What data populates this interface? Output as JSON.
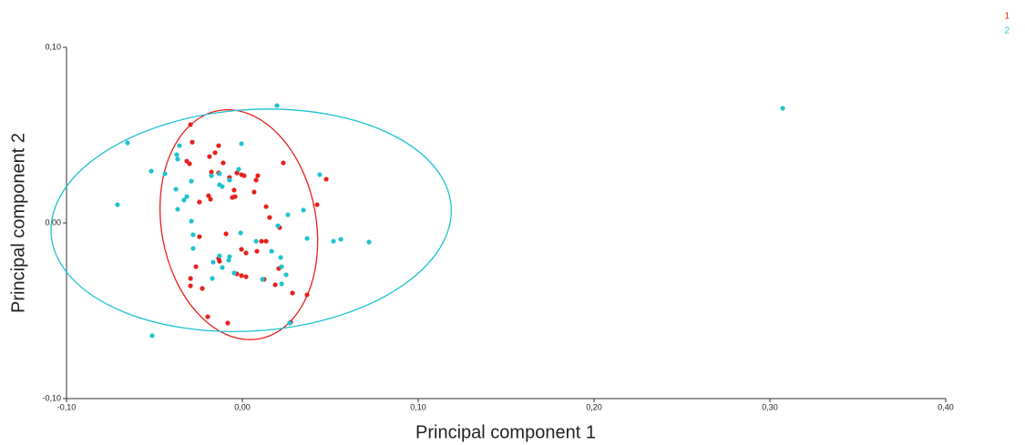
{
  "chart_data": {
    "type": "scatter",
    "x_label": "Principal component 1",
    "y_label": "Principal component 2",
    "xlim": [
      -0.1,
      0.4
    ],
    "ylim": [
      -0.1,
      0.1
    ],
    "xticks": [
      {
        "value": -0.1,
        "label": "-0,10"
      },
      {
        "value": 0,
        "label": "0,00"
      },
      {
        "value": 0.1,
        "label": "0,10"
      },
      {
        "value": 0.2,
        "label": "0,20"
      },
      {
        "value": 0.3,
        "label": "0,30"
      },
      {
        "value": 0.4,
        "label": "0,40"
      }
    ],
    "yticks": [
      {
        "value": -0.1,
        "label": "-0,10"
      },
      {
        "value": 0,
        "label": "0,00"
      },
      {
        "value": 0.1,
        "label": "0,10"
      }
    ],
    "grid": false,
    "legend_position": "top-right",
    "series": [
      {
        "name": "1",
        "color": "#e6211c",
        "x": [
          -0.0295,
          -0.0285,
          -0.0316,
          -0.03,
          -0.0135,
          -0.0155,
          -0.0187,
          -0.0109,
          -0.0073,
          -0.0047,
          -0.0057,
          -0.0176,
          -0.0135,
          -0.0031,
          -0.0005,
          0.0088,
          0.001,
          0.0078,
          0.0067,
          0.0233,
          0.0477,
          0.0425,
          -0.0192,
          -0.0244,
          -0.0181,
          -0.0041,
          0.0135,
          0.0155,
          0.0212,
          -0.0244,
          -0.0093,
          0.0109,
          0.0135,
          -0.0005,
          0.0083,
          0.0021,
          -0.0135,
          -0.013,
          -0.0295,
          -0.0264,
          -0.0295,
          -0.0228,
          -0.0031,
          -0.0005,
          0.0021,
          0.0124,
          0.0207,
          0.0187,
          0.0285,
          0.0368,
          -0.0197,
          -0.0083,
          0.0275
        ],
        "values": [
          0.056,
          0.046,
          0.0352,
          0.0337,
          0.044,
          0.04,
          0.0378,
          0.0342,
          0.0259,
          0.0187,
          0.0145,
          0.029,
          0.0285,
          0.0285,
          0.0275,
          0.0269,
          0.0269,
          0.0244,
          0.0176,
          0.0342,
          0.0249,
          0.0104,
          0.0155,
          0.0119,
          0.0135,
          0.015,
          0.0093,
          0.0031,
          -0.0026,
          -0.0078,
          -0.0062,
          -0.0104,
          -0.0104,
          -0.015,
          -0.0161,
          -0.0171,
          -0.0202,
          -0.0218,
          -0.0316,
          -0.0249,
          -0.0358,
          -0.0373,
          -0.029,
          -0.03,
          -0.0306,
          -0.0321,
          -0.0259,
          -0.0352,
          -0.0399,
          -0.0409,
          -0.0534,
          -0.057,
          -0.0565
        ],
        "ellipse": {
          "center": [
            -0.002,
            -0.001
          ],
          "radii": [
            0.066,
            0.044
          ],
          "angle": 100
        }
      },
      {
        "name": "2",
        "color": "#1fc3cf",
        "x": [
          0.0197,
          -0.0653,
          -0.0518,
          -0.044,
          -0.0373,
          -0.0368,
          -0.0358,
          -0.0005,
          0.044,
          -0.071,
          -0.0378,
          -0.0316,
          -0.0332,
          -0.029,
          -0.0368,
          -0.013,
          -0.013,
          -0.0114,
          -0.0073,
          -0.0021,
          -0.029,
          0.0259,
          0.0347,
          0.0202,
          -0.028,
          -0.001,
          0.0368,
          0.0518,
          0.056,
          0.072,
          -0.028,
          -0.013,
          -0.0166,
          -0.0073,
          -0.0078,
          0.0078,
          0.0166,
          0.0218,
          0.0223,
          0.0249,
          0.0223,
          -0.0114,
          -0.0171,
          0.0114,
          -0.0047,
          -0.0513,
          0.3073,
          -0.0176,
          0.0269
        ],
        "values": [
          0.0668,
          0.0456,
          0.0295,
          0.028,
          0.0389,
          0.0363,
          0.044,
          0.0451,
          0.0275,
          0.0104,
          0.0192,
          0.015,
          0.013,
          0.0238,
          0.0078,
          0.028,
          0.0218,
          0.0207,
          0.0244,
          0.0306,
          0.001,
          0.0047,
          0.0073,
          -0.0016,
          -0.0067,
          -0.0057,
          -0.0088,
          -0.0104,
          -0.0093,
          -0.0109,
          -0.0145,
          -0.0187,
          -0.0223,
          -0.0192,
          -0.0212,
          -0.0104,
          -0.0161,
          -0.0197,
          -0.0249,
          -0.0295,
          -0.0347,
          -0.0254,
          -0.0316,
          -0.0321,
          -0.0285,
          -0.0642,
          0.0653,
          0.0269,
          -0.057
        ],
        "ellipse": {
          "center": [
            0.005,
            0.0015
          ],
          "radii": [
            0.114,
            0.063
          ],
          "angle": 4
        }
      }
    ]
  }
}
